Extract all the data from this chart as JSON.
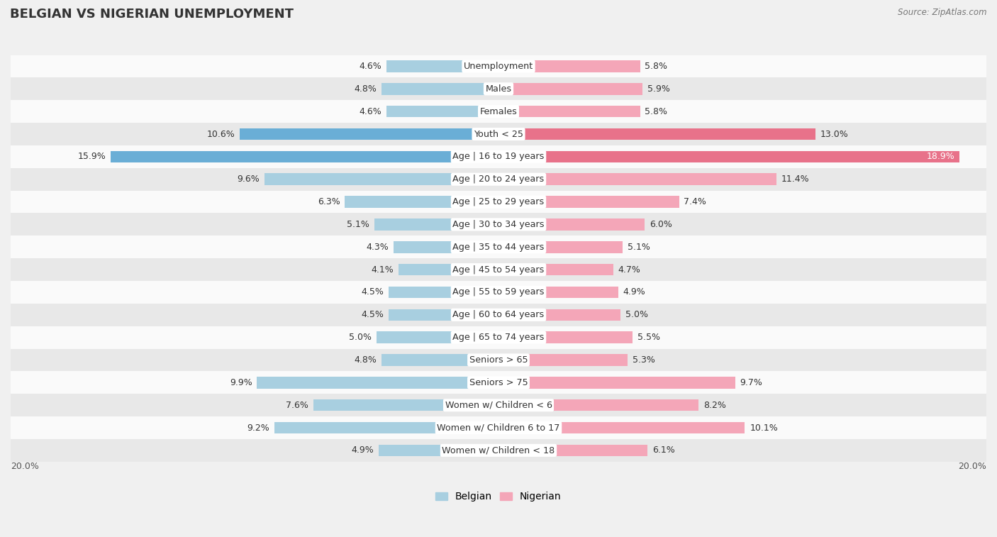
{
  "title": "BELGIAN VS NIGERIAN UNEMPLOYMENT",
  "source": "Source: ZipAtlas.com",
  "categories": [
    "Unemployment",
    "Males",
    "Females",
    "Youth < 25",
    "Age | 16 to 19 years",
    "Age | 20 to 24 years",
    "Age | 25 to 29 years",
    "Age | 30 to 34 years",
    "Age | 35 to 44 years",
    "Age | 45 to 54 years",
    "Age | 55 to 59 years",
    "Age | 60 to 64 years",
    "Age | 65 to 74 years",
    "Seniors > 65",
    "Seniors > 75",
    "Women w/ Children < 6",
    "Women w/ Children 6 to 17",
    "Women w/ Children < 18"
  ],
  "belgian": [
    4.6,
    4.8,
    4.6,
    10.6,
    15.9,
    9.6,
    6.3,
    5.1,
    4.3,
    4.1,
    4.5,
    4.5,
    5.0,
    4.8,
    9.9,
    7.6,
    9.2,
    4.9
  ],
  "nigerian": [
    5.8,
    5.9,
    5.8,
    13.0,
    18.9,
    11.4,
    7.4,
    6.0,
    5.1,
    4.7,
    4.9,
    5.0,
    5.5,
    5.3,
    9.7,
    8.2,
    10.1,
    6.1
  ],
  "belgian_color": "#a8cfe0",
  "nigerian_color": "#f4a6b8",
  "highlight_rows": [
    3,
    4
  ],
  "belgian_highlight_color": "#6aaed6",
  "nigerian_highlight_color": "#e8728a",
  "bg_color": "#f0f0f0",
  "row_color_light": "#fafafa",
  "row_color_dark": "#e8e8e8",
  "xlim": 20.0,
  "bar_height": 0.52,
  "label_fontsize": 9.2,
  "value_fontsize": 9.0,
  "title_fontsize": 13
}
